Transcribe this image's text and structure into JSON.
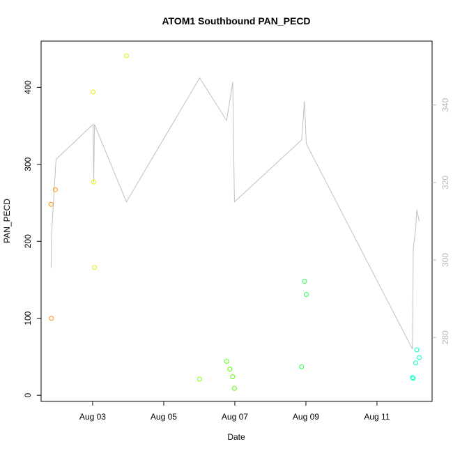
{
  "chart_data": {
    "type": "scatter",
    "title": "ATOM1 Southbound PAN_PECD",
    "xlabel": "Date",
    "ylabel": "PAN_PECD",
    "x_ticks": [
      {
        "label": "Aug 03",
        "day": 3
      },
      {
        "label": "Aug 05",
        "day": 5
      },
      {
        "label": "Aug 07",
        "day": 7
      },
      {
        "label": "Aug 09",
        "day": 9
      },
      {
        "label": "Aug 11",
        "day": 11
      }
    ],
    "xlim": [
      1.55,
      12.55
    ],
    "ylim": [
      -8,
      460
    ],
    "y_ticks": [
      0,
      100,
      200,
      300,
      400
    ],
    "y2lim": [
      263.5,
      356.5
    ],
    "y2_ticks": [
      280,
      300,
      320,
      340
    ],
    "grid": false,
    "points": [
      {
        "x": 1.83,
        "y": 248,
        "color": "#ff8c00"
      },
      {
        "x": 1.84,
        "y": 100,
        "color": "#ff8c00"
      },
      {
        "x": 1.95,
        "y": 267,
        "color": "#ff9a00"
      },
      {
        "x": 3.01,
        "y": 394,
        "color": "#e8f000"
      },
      {
        "x": 3.03,
        "y": 277,
        "color": "#e8f000"
      },
      {
        "x": 3.05,
        "y": 166,
        "color": "#e8f000"
      },
      {
        "x": 3.95,
        "y": 441,
        "color": "#d9f000"
      },
      {
        "x": 6.01,
        "y": 21,
        "color": "#7fff00"
      },
      {
        "x": 6.77,
        "y": 44,
        "color": "#55ff00"
      },
      {
        "x": 6.86,
        "y": 34,
        "color": "#55ff00"
      },
      {
        "x": 6.94,
        "y": 24,
        "color": "#55ff00"
      },
      {
        "x": 6.99,
        "y": 9,
        "color": "#55ff00"
      },
      {
        "x": 8.88,
        "y": 37,
        "color": "#22ff44"
      },
      {
        "x": 8.96,
        "y": 148,
        "color": "#22ff44"
      },
      {
        "x": 9.01,
        "y": 131,
        "color": "#22ff44"
      },
      {
        "x": 12.0,
        "y": 23,
        "color": "#00ffcc"
      },
      {
        "x": 12.02,
        "y": 22,
        "color": "#00ffcc"
      },
      {
        "x": 12.09,
        "y": 42,
        "color": "#00ffcc"
      },
      {
        "x": 12.12,
        "y": 59,
        "color": "#00ffcc"
      },
      {
        "x": 12.19,
        "y": 49,
        "color": "#00ffcc"
      }
    ],
    "secondary_line": {
      "color": "#c0c0c0",
      "points": [
        [
          1.83,
          298
        ],
        [
          1.84,
          306
        ],
        [
          1.97,
          326
        ],
        [
          3.01,
          335
        ],
        [
          3.03,
          320
        ],
        [
          3.05,
          335
        ],
        [
          3.95,
          315
        ],
        [
          6.01,
          347
        ],
        [
          6.77,
          336
        ],
        [
          6.94,
          346
        ],
        [
          6.99,
          315
        ],
        [
          8.88,
          331
        ],
        [
          8.96,
          341
        ],
        [
          9.01,
          330
        ],
        [
          12.0,
          277
        ],
        [
          12.02,
          303
        ],
        [
          12.09,
          308
        ],
        [
          12.12,
          313
        ],
        [
          12.19,
          310
        ]
      ]
    }
  }
}
